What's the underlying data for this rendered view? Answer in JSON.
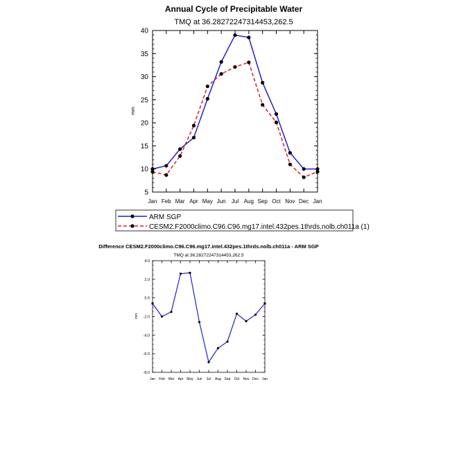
{
  "colors": {
    "model": "#1f1fd0",
    "obs": "#e01b1b",
    "text": "#000000"
  },
  "chart_data": [
    {
      "type": "line",
      "title": "Annual Cycle of Precipitable Water",
      "subtitle": "TMQ at 36.28272247314453,262.5",
      "ylabel": "mm",
      "xlabel": "",
      "categories": [
        "Jan",
        "Feb",
        "Mar",
        "Apr",
        "May",
        "Jun",
        "Jul",
        "Aug",
        "Sep",
        "Oct",
        "Nov",
        "Dec",
        "Jan"
      ],
      "yticks": [
        "5",
        "10",
        "15",
        "20",
        "25",
        "30",
        "35",
        "40"
      ],
      "ylim": [
        5,
        40
      ],
      "grid": false,
      "legend_position": "bottom",
      "series": [
        {
          "name": "ARM SGP",
          "style": "solid",
          "values": [
            10.0,
            10.7,
            14.3,
            16.8,
            25.2,
            33.2,
            39.0,
            38.5,
            28.7,
            21.9,
            13.5,
            10.0,
            10.0
          ]
        },
        {
          "name": "CESM2.F2000climo.C96.C96.mg17.intel.432pes.1thrds.nolb.ch011a (1)",
          "style": "dashed",
          "values": [
            9.4,
            8.7,
            12.8,
            19.4,
            27.9,
            30.6,
            32.1,
            33.1,
            23.9,
            20.1,
            11.0,
            8.2,
            9.4
          ]
        }
      ]
    },
    {
      "type": "line",
      "title": "Difference CESM2.F2000climo.C96.C96.mg17.intel.432pes.1thrds.nolb.ch011a - ARM SGP",
      "subtitle": "TMQ at 36.28272247314453,262.5",
      "ylabel": "mm",
      "xlabel": "",
      "categories": [
        "Jan",
        "Feb",
        "Mar",
        "Apr",
        "May",
        "Jun",
        "Jul",
        "Aug",
        "Sep",
        "Oct",
        "Nov",
        "Dec",
        "Jan"
      ],
      "yticks": [
        "4.0",
        "2.0",
        "0.0",
        "-2.0",
        "-4.0",
        "-6.0",
        "-8.0"
      ],
      "ylim": [
        -8,
        4
      ],
      "grid": false,
      "series": [
        {
          "values": [
            -0.6,
            -2.0,
            -1.5,
            2.6,
            2.7,
            -2.6,
            -6.9,
            -5.4,
            -4.7,
            -1.7,
            -2.5,
            -1.8,
            -0.6
          ]
        }
      ]
    }
  ]
}
